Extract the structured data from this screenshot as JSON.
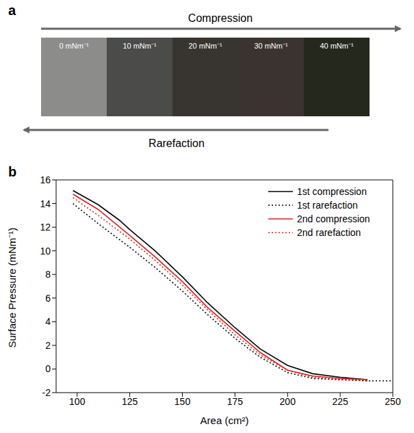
{
  "panel_a": {
    "panel": "a",
    "top_arrow": "Compression",
    "bottom_arrow": "Rarefaction",
    "frames": [
      {
        "label": "0 mNm⁻¹",
        "color": "#8c8c8a"
      },
      {
        "label": "10 mNm⁻¹",
        "color": "#4b4b49"
      },
      {
        "label": "20 mNm⁻¹",
        "color": "#383531"
      },
      {
        "label": "30 mNm⁻¹",
        "color": "#3b3330"
      },
      {
        "label": "40 mNm⁻¹",
        "color": "#25291d"
      }
    ]
  },
  "chart_data": {
    "panel": "b",
    "type": "line",
    "x_label": "Area (cm²)",
    "y_label": "Surface Pressure (mNm⁻¹)",
    "xlim": [
      90,
      250
    ],
    "xticks": [
      100,
      125,
      150,
      175,
      200,
      225,
      250
    ],
    "ylim": [
      -2,
      16
    ],
    "yticks": [
      -2,
      0,
      2,
      4,
      6,
      8,
      10,
      12,
      14,
      16
    ],
    "legend": "upper right",
    "series": [
      {
        "name": "1st compression",
        "color": "#000000",
        "line_style": "solid",
        "x": [
          98,
          110,
          120,
          125,
          137,
          150,
          162,
          175,
          187,
          200,
          212,
          225,
          238
        ],
        "values": [
          15.1,
          13.9,
          12.6,
          11.8,
          10.0,
          7.8,
          5.6,
          3.5,
          1.7,
          0.3,
          -0.4,
          -0.7,
          -0.9
        ]
      },
      {
        "name": "1st rarefaction",
        "color": "#000000",
        "line_style": "dotted",
        "x": [
          98,
          110,
          125,
          137,
          150,
          162,
          175,
          187,
          200,
          212,
          225,
          238,
          250
        ],
        "values": [
          14.0,
          12.3,
          10.3,
          8.6,
          6.6,
          4.6,
          2.6,
          1.0,
          -0.3,
          -0.8,
          -0.9,
          -1.0,
          -1.0
        ]
      },
      {
        "name": "2nd compression",
        "color": "#d62020",
        "line_style": "solid",
        "x": [
          98,
          110,
          125,
          137,
          150,
          162,
          175,
          187,
          200,
          212,
          225,
          238
        ],
        "values": [
          14.8,
          13.5,
          11.3,
          9.5,
          7.4,
          5.2,
          3.2,
          1.4,
          -0.1,
          -0.6,
          -0.8,
          -0.9
        ]
      },
      {
        "name": "2nd rarefaction",
        "color": "#d62020",
        "line_style": "dotted",
        "x": [
          98,
          110,
          125,
          137,
          150,
          162,
          175,
          187,
          200,
          212,
          225,
          238
        ],
        "values": [
          14.5,
          13.0,
          11.0,
          9.2,
          7.1,
          5.0,
          2.9,
          1.2,
          -0.1,
          -0.7,
          -0.9,
          -1.0
        ]
      }
    ]
  }
}
